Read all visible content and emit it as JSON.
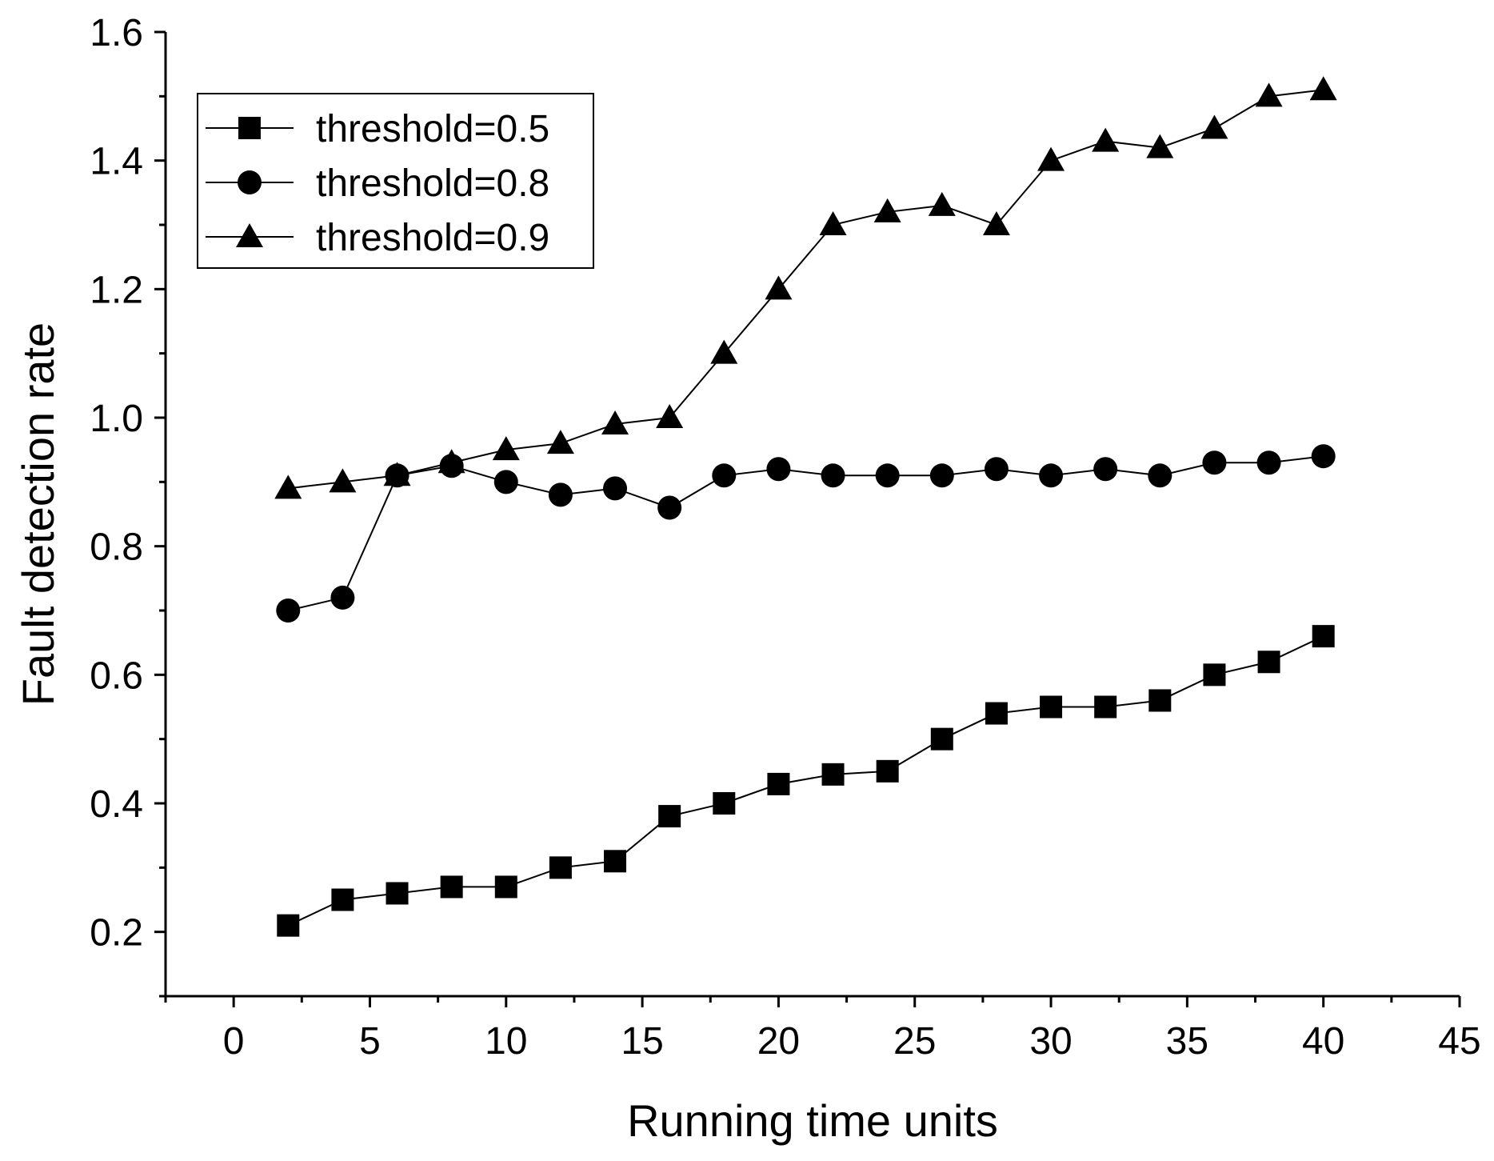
{
  "chart_data": {
    "type": "line",
    "title": "",
    "xlabel": "Running time units",
    "ylabel": "Fault detection rate",
    "xlim": [
      -2.5,
      45
    ],
    "ylim": [
      0.1,
      1.6
    ],
    "xticks": [
      0,
      5,
      10,
      15,
      20,
      25,
      30,
      35,
      40,
      45
    ],
    "xtick_labels": [
      "0",
      "5",
      "10",
      "15",
      "20",
      "25",
      "30",
      "35",
      "40",
      "45"
    ],
    "yticks": [
      0.2,
      0.4,
      0.6,
      0.8,
      1.0,
      1.2,
      1.4,
      1.6
    ],
    "ytick_labels": [
      "0.2",
      "0.4",
      "0.6",
      "0.8",
      "1.0",
      "1.2",
      "1.4",
      "1.6"
    ],
    "grid": false,
    "legend_position": "top-left",
    "x": [
      2,
      4,
      6,
      8,
      10,
      12,
      14,
      16,
      18,
      20,
      22,
      24,
      26,
      28,
      30,
      32,
      34,
      36,
      38,
      40
    ],
    "series": [
      {
        "name": "threshold=0.5",
        "marker": "square",
        "color": "#000000",
        "values": [
          0.21,
          0.25,
          0.26,
          0.27,
          0.27,
          0.3,
          0.31,
          0.38,
          0.4,
          0.43,
          0.445,
          0.45,
          0.5,
          0.54,
          0.55,
          0.55,
          0.56,
          0.6,
          0.62,
          0.66
        ]
      },
      {
        "name": "threshold=0.8",
        "marker": "circle",
        "color": "#000000",
        "values": [
          0.7,
          0.72,
          0.91,
          0.925,
          0.9,
          0.88,
          0.89,
          0.86,
          0.91,
          0.92,
          0.91,
          0.91,
          0.91,
          0.92,
          0.91,
          0.92,
          0.91,
          0.93,
          0.93,
          0.94
        ]
      },
      {
        "name": "threshold=0.9",
        "marker": "triangle",
        "color": "#000000",
        "values": [
          0.89,
          0.9,
          0.91,
          0.93,
          0.95,
          0.96,
          0.99,
          1.0,
          1.1,
          1.2,
          1.3,
          1.32,
          1.33,
          1.3,
          1.4,
          1.43,
          1.42,
          1.45,
          1.5,
          1.51
        ]
      }
    ]
  }
}
